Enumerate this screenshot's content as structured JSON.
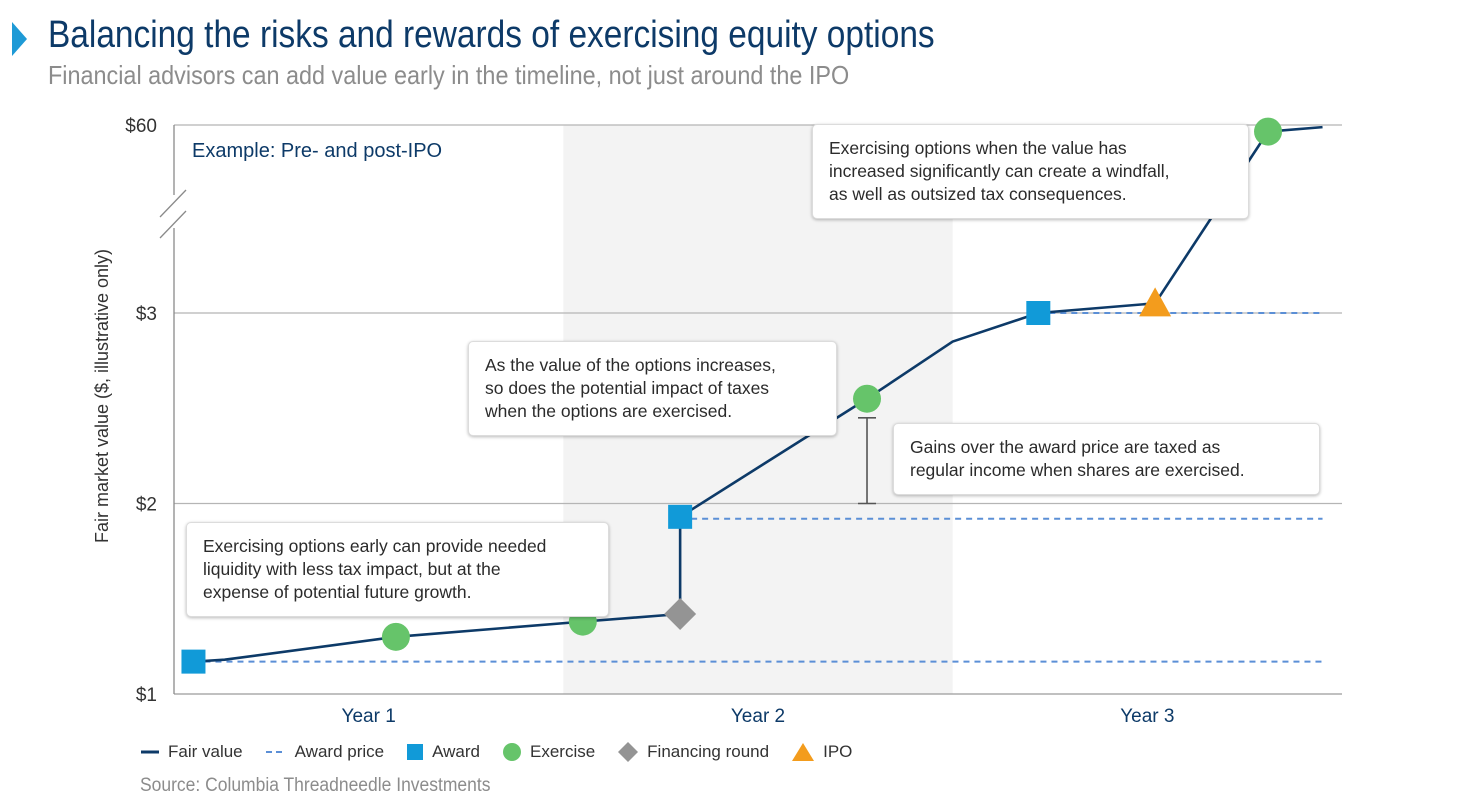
{
  "header": {
    "title": "Balancing the risks and rewards of exercising equity options",
    "subtitle": "Financial advisors can add value early in the timeline, not just around the IPO"
  },
  "chart_data": {
    "type": "line",
    "title": "Example: Pre- and post-IPO",
    "xlabel": "",
    "ylabel": "Fair market value ($, illustrative only)",
    "y_axis": {
      "tick_labels": [
        "$1",
        "$2",
        "$3",
        "$60"
      ],
      "tick_values": [
        1,
        2,
        3,
        60
      ],
      "axis_break": "between $3 and $60"
    },
    "x_axis": {
      "categories": [
        "Year 1",
        "Year 2",
        "Year 3"
      ],
      "range": [
        0.5,
        3.5
      ]
    },
    "shaded_period": {
      "x": [
        1.5,
        2.5
      ],
      "note": "Year 2"
    },
    "series": [
      {
        "name": "Fair value",
        "style": "solid",
        "color": "#0d3a68",
        "points": [
          {
            "x": 0.55,
            "y": 1.17
          },
          {
            "x": 0.63,
            "y": 1.18
          },
          {
            "x": 1.07,
            "y": 1.3
          },
          {
            "x": 1.55,
            "y": 1.38
          },
          {
            "x": 1.8,
            "y": 1.42
          },
          {
            "x": 1.8,
            "y": 1.93
          },
          {
            "x": 2.28,
            "y": 2.55
          },
          {
            "x": 2.5,
            "y": 2.85
          },
          {
            "x": 2.72,
            "y": 3.0
          },
          {
            "x": 3.02,
            "y": 3.5
          },
          {
            "x": 3.31,
            "y": 54
          },
          {
            "x": 3.45,
            "y": 58
          }
        ]
      },
      {
        "name": "Award price",
        "style": "dashed",
        "color": "#5b8fd6",
        "segments": [
          {
            "y": 1.17,
            "x_start": 0.55,
            "x_end": 3.45
          },
          {
            "y": 1.92,
            "x_start": 1.8,
            "x_end": 3.45
          },
          {
            "y": 3.0,
            "x_start": 2.72,
            "x_end": 3.45
          }
        ]
      }
    ],
    "markers": [
      {
        "type": "Award",
        "shape": "square",
        "color": "#119ad8",
        "x": 0.55,
        "y": 1.17
      },
      {
        "type": "Exercise",
        "shape": "circle",
        "color": "#66c46a",
        "x": 1.07,
        "y": 1.3
      },
      {
        "type": "Exercise",
        "shape": "circle",
        "color": "#66c46a",
        "x": 1.55,
        "y": 1.38
      },
      {
        "type": "Financing round",
        "shape": "diamond",
        "color": "#949494",
        "x": 1.8,
        "y": 1.42
      },
      {
        "type": "Award",
        "shape": "square",
        "color": "#119ad8",
        "x": 1.8,
        "y": 1.93
      },
      {
        "type": "Exercise",
        "shape": "circle",
        "color": "#66c46a",
        "x": 2.28,
        "y": 2.55
      },
      {
        "type": "Award",
        "shape": "square",
        "color": "#119ad8",
        "x": 2.72,
        "y": 3.0
      },
      {
        "type": "IPO",
        "shape": "triangle",
        "color": "#f39c1d",
        "x": 3.02,
        "y": 3.5
      },
      {
        "type": "Exercise",
        "shape": "circle",
        "color": "#66c46a",
        "x": 3.31,
        "y": 54
      }
    ],
    "gain_bracket": {
      "x": 2.28,
      "y_low": 2.0,
      "y_high": 2.45
    },
    "legend": {
      "position": "bottom",
      "items": [
        {
          "label": "Fair value",
          "symbol": "solid-line",
          "color": "#0d3a68"
        },
        {
          "label": "Award price",
          "symbol": "dashed-line",
          "color": "#5b8fd6"
        },
        {
          "label": "Award",
          "symbol": "square",
          "color": "#119ad8"
        },
        {
          "label": "Exercise",
          "symbol": "circle",
          "color": "#66c46a"
        },
        {
          "label": "Financing round",
          "symbol": "diamond",
          "color": "#949494"
        },
        {
          "label": "IPO",
          "symbol": "triangle",
          "color": "#f39c1d"
        }
      ]
    },
    "annotations": [
      {
        "id": "early",
        "lines": [
          "Exercising options early can provide needed",
          "liquidity with less tax impact, but at the",
          "expense of potential future growth."
        ]
      },
      {
        "id": "increase",
        "lines": [
          "As the value of the options increases,",
          "so does the potential impact of taxes",
          "when the options are exercised."
        ]
      },
      {
        "id": "gains",
        "lines": [
          "Gains over the award price are taxed as",
          "regular income when shares are exercised."
        ]
      },
      {
        "id": "windfall",
        "lines": [
          "Exercising options when the value has",
          "increased significantly can create a windfall,",
          "as well as outsized tax consequences."
        ]
      }
    ],
    "grid": true
  },
  "source": "Source: Columbia Threadneedle Investments"
}
